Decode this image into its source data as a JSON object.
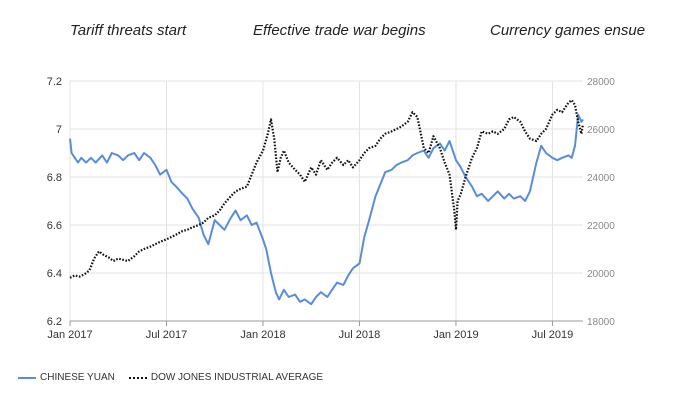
{
  "annotations": [
    "Tariff threats start",
    "Effective trade war begins",
    "Currency games ensue"
  ],
  "chart_data": {
    "type": "line",
    "title": "",
    "x_start": "2017-01",
    "x_end": "2019-08",
    "xlabel": "",
    "x_ticks": [
      {
        "label": "Jan 2017",
        "month": 0
      },
      {
        "label": "Jul 2017",
        "month": 6
      },
      {
        "label": "Jan 2018",
        "month": 12
      },
      {
        "label": "Jul 2018",
        "month": 18
      },
      {
        "label": "Jan 2019",
        "month": 24
      },
      {
        "label": "Jul 2019",
        "month": 30
      }
    ],
    "y_left": {
      "label": "",
      "lim": [
        6.2,
        7.2
      ],
      "ticks": [
        "6.2",
        "6.4",
        "6.6",
        "6.8",
        "7",
        "7.2"
      ]
    },
    "y_right": {
      "label": "",
      "lim": [
        18000,
        28000
      ],
      "ticks": [
        "18000",
        "20000",
        "22000",
        "24000",
        "26000",
        "28000"
      ]
    },
    "series": [
      {
        "name": "CHINESE YUAN",
        "axis": "left",
        "color": "#5b8dd6",
        "style": "solid",
        "points": [
          [
            0.0,
            6.96
          ],
          [
            0.1,
            6.9
          ],
          [
            0.3,
            6.88
          ],
          [
            0.5,
            6.86
          ],
          [
            0.7,
            6.88
          ],
          [
            1.0,
            6.86
          ],
          [
            1.3,
            6.88
          ],
          [
            1.6,
            6.86
          ],
          [
            2.0,
            6.89
          ],
          [
            2.3,
            6.86
          ],
          [
            2.6,
            6.9
          ],
          [
            3.0,
            6.89
          ],
          [
            3.3,
            6.87
          ],
          [
            3.6,
            6.89
          ],
          [
            4.0,
            6.9
          ],
          [
            4.3,
            6.87
          ],
          [
            4.6,
            6.9
          ],
          [
            5.0,
            6.88
          ],
          [
            5.3,
            6.85
          ],
          [
            5.6,
            6.81
          ],
          [
            6.0,
            6.83
          ],
          [
            6.3,
            6.78
          ],
          [
            6.6,
            6.76
          ],
          [
            7.0,
            6.73
          ],
          [
            7.3,
            6.71
          ],
          [
            7.6,
            6.67
          ],
          [
            8.0,
            6.63
          ],
          [
            8.3,
            6.56
          ],
          [
            8.6,
            6.52
          ],
          [
            9.0,
            6.62
          ],
          [
            9.3,
            6.6
          ],
          [
            9.6,
            6.58
          ],
          [
            10.0,
            6.63
          ],
          [
            10.3,
            6.66
          ],
          [
            10.6,
            6.62
          ],
          [
            11.0,
            6.64
          ],
          [
            11.3,
            6.6
          ],
          [
            11.6,
            6.61
          ],
          [
            12.0,
            6.54
          ],
          [
            12.2,
            6.5
          ],
          [
            12.5,
            6.4
          ],
          [
            12.8,
            6.32
          ],
          [
            13.0,
            6.29
          ],
          [
            13.3,
            6.33
          ],
          [
            13.6,
            6.3
          ],
          [
            14.0,
            6.31
          ],
          [
            14.3,
            6.28
          ],
          [
            14.6,
            6.29
          ],
          [
            15.0,
            6.27
          ],
          [
            15.3,
            6.3
          ],
          [
            15.6,
            6.32
          ],
          [
            16.0,
            6.3
          ],
          [
            16.3,
            6.33
          ],
          [
            16.6,
            6.36
          ],
          [
            17.0,
            6.35
          ],
          [
            17.3,
            6.39
          ],
          [
            17.6,
            6.42
          ],
          [
            18.0,
            6.44
          ],
          [
            18.3,
            6.55
          ],
          [
            18.6,
            6.62
          ],
          [
            19.0,
            6.72
          ],
          [
            19.3,
            6.77
          ],
          [
            19.6,
            6.82
          ],
          [
            20.0,
            6.83
          ],
          [
            20.3,
            6.85
          ],
          [
            20.6,
            6.86
          ],
          [
            21.0,
            6.87
          ],
          [
            21.3,
            6.89
          ],
          [
            21.6,
            6.9
          ],
          [
            22.0,
            6.91
          ],
          [
            22.3,
            6.88
          ],
          [
            22.6,
            6.92
          ],
          [
            23.0,
            6.94
          ],
          [
            23.3,
            6.91
          ],
          [
            23.6,
            6.95
          ],
          [
            24.0,
            6.87
          ],
          [
            24.3,
            6.84
          ],
          [
            24.6,
            6.8
          ],
          [
            25.0,
            6.76
          ],
          [
            25.3,
            6.72
          ],
          [
            25.6,
            6.73
          ],
          [
            26.0,
            6.7
          ],
          [
            26.3,
            6.72
          ],
          [
            26.6,
            6.74
          ],
          [
            27.0,
            6.71
          ],
          [
            27.3,
            6.73
          ],
          [
            27.6,
            6.71
          ],
          [
            28.0,
            6.72
          ],
          [
            28.3,
            6.7
          ],
          [
            28.6,
            6.74
          ],
          [
            29.0,
            6.86
          ],
          [
            29.3,
            6.93
          ],
          [
            29.6,
            6.9
          ],
          [
            30.0,
            6.88
          ],
          [
            30.3,
            6.87
          ],
          [
            30.6,
            6.88
          ],
          [
            31.0,
            6.89
          ],
          [
            31.2,
            6.88
          ],
          [
            31.4,
            6.93
          ],
          [
            31.6,
            7.06
          ],
          [
            31.8,
            7.03
          ],
          [
            31.9,
            7.04
          ]
        ]
      },
      {
        "name": "DOW JONES INDUSTRIAL AVERAGE",
        "axis": "right",
        "color": "#111111",
        "style": "dotted",
        "points": [
          [
            0.0,
            19800
          ],
          [
            0.3,
            19900
          ],
          [
            0.6,
            19850
          ],
          [
            0.9,
            19950
          ],
          [
            1.2,
            20100
          ],
          [
            1.5,
            20600
          ],
          [
            1.8,
            20900
          ],
          [
            2.1,
            20750
          ],
          [
            2.4,
            20650
          ],
          [
            2.7,
            20500
          ],
          [
            3.0,
            20600
          ],
          [
            3.3,
            20550
          ],
          [
            3.6,
            20500
          ],
          [
            4.0,
            20700
          ],
          [
            4.3,
            20900
          ],
          [
            4.6,
            21000
          ],
          [
            5.0,
            21100
          ],
          [
            5.3,
            21200
          ],
          [
            5.6,
            21300
          ],
          [
            6.0,
            21400
          ],
          [
            6.3,
            21500
          ],
          [
            6.6,
            21600
          ],
          [
            7.0,
            21750
          ],
          [
            7.3,
            21800
          ],
          [
            7.6,
            21900
          ],
          [
            8.0,
            22000
          ],
          [
            8.3,
            22100
          ],
          [
            8.6,
            22300
          ],
          [
            9.0,
            22400
          ],
          [
            9.3,
            22600
          ],
          [
            9.6,
            22900
          ],
          [
            10.0,
            23200
          ],
          [
            10.3,
            23400
          ],
          [
            10.6,
            23500
          ],
          [
            11.0,
            23600
          ],
          [
            11.3,
            24100
          ],
          [
            11.6,
            24600
          ],
          [
            12.0,
            25100
          ],
          [
            12.3,
            25800
          ],
          [
            12.5,
            26400
          ],
          [
            12.7,
            25600
          ],
          [
            12.9,
            24200
          ],
          [
            13.1,
            24800
          ],
          [
            13.3,
            25100
          ],
          [
            13.6,
            24600
          ],
          [
            14.0,
            24300
          ],
          [
            14.3,
            24100
          ],
          [
            14.6,
            23800
          ],
          [
            15.0,
            24400
          ],
          [
            15.3,
            24100
          ],
          [
            15.6,
            24700
          ],
          [
            16.0,
            24300
          ],
          [
            16.3,
            24600
          ],
          [
            16.6,
            24800
          ],
          [
            17.0,
            24500
          ],
          [
            17.3,
            24700
          ],
          [
            17.6,
            24400
          ],
          [
            18.0,
            24700
          ],
          [
            18.3,
            25000
          ],
          [
            18.6,
            25200
          ],
          [
            19.0,
            25300
          ],
          [
            19.3,
            25600
          ],
          [
            19.6,
            25800
          ],
          [
            20.0,
            25900
          ],
          [
            20.3,
            26000
          ],
          [
            20.6,
            26100
          ],
          [
            21.0,
            26300
          ],
          [
            21.3,
            26700
          ],
          [
            21.6,
            26500
          ],
          [
            22.0,
            25200
          ],
          [
            22.3,
            25000
          ],
          [
            22.6,
            25700
          ],
          [
            23.0,
            25200
          ],
          [
            23.3,
            24600
          ],
          [
            23.6,
            24100
          ],
          [
            23.9,
            22600
          ],
          [
            24.0,
            21800
          ],
          [
            24.1,
            23000
          ],
          [
            24.3,
            23300
          ],
          [
            24.6,
            24000
          ],
          [
            25.0,
            24800
          ],
          [
            25.3,
            25200
          ],
          [
            25.6,
            25900
          ],
          [
            26.0,
            25800
          ],
          [
            26.3,
            25900
          ],
          [
            26.6,
            25800
          ],
          [
            27.0,
            26000
          ],
          [
            27.3,
            26400
          ],
          [
            27.6,
            26500
          ],
          [
            28.0,
            26300
          ],
          [
            28.3,
            25900
          ],
          [
            28.6,
            25600
          ],
          [
            29.0,
            25500
          ],
          [
            29.3,
            25800
          ],
          [
            29.6,
            26000
          ],
          [
            30.0,
            26600
          ],
          [
            30.3,
            26800
          ],
          [
            30.6,
            26700
          ],
          [
            31.0,
            27100
          ],
          [
            31.2,
            27200
          ],
          [
            31.4,
            27000
          ],
          [
            31.6,
            26300
          ],
          [
            31.8,
            25800
          ],
          [
            31.9,
            26200
          ]
        ]
      }
    ],
    "legend": [
      "CHINESE YUAN",
      "DOW JONES INDUSTRIAL AVERAGE"
    ],
    "legend_position": "bottom-left",
    "grid": true
  }
}
